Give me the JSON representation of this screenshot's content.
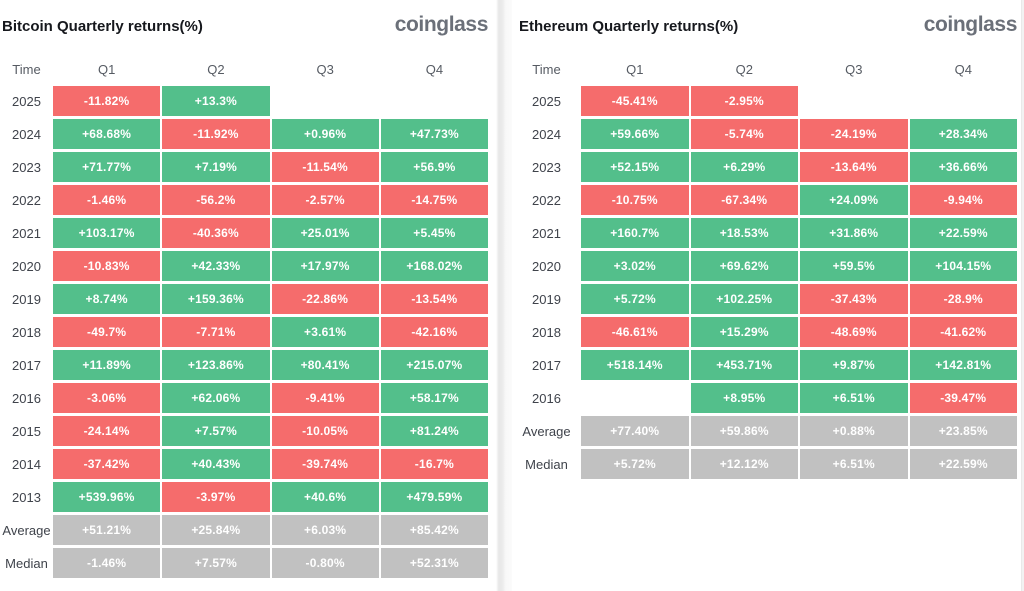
{
  "colors": {
    "green": "#53bf8b",
    "red": "#f56c6c",
    "gray": "#c1c1c1"
  },
  "panels": [
    {
      "title": "Bitcoin Quarterly returns(%)",
      "logo": "coinglass",
      "columns": [
        "Time",
        "Q1",
        "Q2",
        "Q3",
        "Q4"
      ],
      "rows": [
        {
          "label": "2025",
          "cells": [
            {
              "v": "-11.82%",
              "c": "r"
            },
            {
              "v": "+13.3%",
              "c": "g"
            },
            null,
            null
          ]
        },
        {
          "label": "2024",
          "cells": [
            {
              "v": "+68.68%",
              "c": "g"
            },
            {
              "v": "-11.92%",
              "c": "r"
            },
            {
              "v": "+0.96%",
              "c": "g"
            },
            {
              "v": "+47.73%",
              "c": "g"
            }
          ]
        },
        {
          "label": "2023",
          "cells": [
            {
              "v": "+71.77%",
              "c": "g"
            },
            {
              "v": "+7.19%",
              "c": "g"
            },
            {
              "v": "-11.54%",
              "c": "r"
            },
            {
              "v": "+56.9%",
              "c": "g"
            }
          ]
        },
        {
          "label": "2022",
          "cells": [
            {
              "v": "-1.46%",
              "c": "r"
            },
            {
              "v": "-56.2%",
              "c": "r"
            },
            {
              "v": "-2.57%",
              "c": "r"
            },
            {
              "v": "-14.75%",
              "c": "r"
            }
          ]
        },
        {
          "label": "2021",
          "cells": [
            {
              "v": "+103.17%",
              "c": "g"
            },
            {
              "v": "-40.36%",
              "c": "r"
            },
            {
              "v": "+25.01%",
              "c": "g"
            },
            {
              "v": "+5.45%",
              "c": "g"
            }
          ]
        },
        {
          "label": "2020",
          "cells": [
            {
              "v": "-10.83%",
              "c": "r"
            },
            {
              "v": "+42.33%",
              "c": "g"
            },
            {
              "v": "+17.97%",
              "c": "g"
            },
            {
              "v": "+168.02%",
              "c": "g"
            }
          ]
        },
        {
          "label": "2019",
          "cells": [
            {
              "v": "+8.74%",
              "c": "g"
            },
            {
              "v": "+159.36%",
              "c": "g"
            },
            {
              "v": "-22.86%",
              "c": "r"
            },
            {
              "v": "-13.54%",
              "c": "r"
            }
          ]
        },
        {
          "label": "2018",
          "cells": [
            {
              "v": "-49.7%",
              "c": "r"
            },
            {
              "v": "-7.71%",
              "c": "r"
            },
            {
              "v": "+3.61%",
              "c": "g"
            },
            {
              "v": "-42.16%",
              "c": "r"
            }
          ]
        },
        {
          "label": "2017",
          "cells": [
            {
              "v": "+11.89%",
              "c": "g"
            },
            {
              "v": "+123.86%",
              "c": "g"
            },
            {
              "v": "+80.41%",
              "c": "g"
            },
            {
              "v": "+215.07%",
              "c": "g"
            }
          ]
        },
        {
          "label": "2016",
          "cells": [
            {
              "v": "-3.06%",
              "c": "r"
            },
            {
              "v": "+62.06%",
              "c": "g"
            },
            {
              "v": "-9.41%",
              "c": "r"
            },
            {
              "v": "+58.17%",
              "c": "g"
            }
          ]
        },
        {
          "label": "2015",
          "cells": [
            {
              "v": "-24.14%",
              "c": "r"
            },
            {
              "v": "+7.57%",
              "c": "g"
            },
            {
              "v": "-10.05%",
              "c": "r"
            },
            {
              "v": "+81.24%",
              "c": "g"
            }
          ]
        },
        {
          "label": "2014",
          "cells": [
            {
              "v": "-37.42%",
              "c": "r"
            },
            {
              "v": "+40.43%",
              "c": "g"
            },
            {
              "v": "-39.74%",
              "c": "r"
            },
            {
              "v": "-16.7%",
              "c": "r"
            }
          ]
        },
        {
          "label": "2013",
          "cells": [
            {
              "v": "+539.96%",
              "c": "g"
            },
            {
              "v": "-3.97%",
              "c": "r"
            },
            {
              "v": "+40.6%",
              "c": "g"
            },
            {
              "v": "+479.59%",
              "c": "g"
            }
          ]
        },
        {
          "label": "Average",
          "cells": [
            {
              "v": "+51.21%",
              "c": "x"
            },
            {
              "v": "+25.84%",
              "c": "x"
            },
            {
              "v": "+6.03%",
              "c": "x"
            },
            {
              "v": "+85.42%",
              "c": "x"
            }
          ]
        },
        {
          "label": "Median",
          "cells": [
            {
              "v": "-1.46%",
              "c": "x"
            },
            {
              "v": "+7.57%",
              "c": "x"
            },
            {
              "v": "-0.80%",
              "c": "x"
            },
            {
              "v": "+52.31%",
              "c": "x"
            }
          ]
        }
      ]
    },
    {
      "title": "Ethereum Quarterly returns(%)",
      "logo": "coinglass",
      "columns": [
        "Time",
        "Q1",
        "Q2",
        "Q3",
        "Q4"
      ],
      "rows": [
        {
          "label": "2025",
          "cells": [
            {
              "v": "-45.41%",
              "c": "r"
            },
            {
              "v": "-2.95%",
              "c": "r"
            },
            null,
            null
          ]
        },
        {
          "label": "2024",
          "cells": [
            {
              "v": "+59.66%",
              "c": "g"
            },
            {
              "v": "-5.74%",
              "c": "r"
            },
            {
              "v": "-24.19%",
              "c": "r"
            },
            {
              "v": "+28.34%",
              "c": "g"
            }
          ]
        },
        {
          "label": "2023",
          "cells": [
            {
              "v": "+52.15%",
              "c": "g"
            },
            {
              "v": "+6.29%",
              "c": "g"
            },
            {
              "v": "-13.64%",
              "c": "r"
            },
            {
              "v": "+36.66%",
              "c": "g"
            }
          ]
        },
        {
          "label": "2022",
          "cells": [
            {
              "v": "-10.75%",
              "c": "r"
            },
            {
              "v": "-67.34%",
              "c": "r"
            },
            {
              "v": "+24.09%",
              "c": "g"
            },
            {
              "v": "-9.94%",
              "c": "r"
            }
          ]
        },
        {
          "label": "2021",
          "cells": [
            {
              "v": "+160.7%",
              "c": "g"
            },
            {
              "v": "+18.53%",
              "c": "g"
            },
            {
              "v": "+31.86%",
              "c": "g"
            },
            {
              "v": "+22.59%",
              "c": "g"
            }
          ]
        },
        {
          "label": "2020",
          "cells": [
            {
              "v": "+3.02%",
              "c": "g"
            },
            {
              "v": "+69.62%",
              "c": "g"
            },
            {
              "v": "+59.5%",
              "c": "g"
            },
            {
              "v": "+104.15%",
              "c": "g"
            }
          ]
        },
        {
          "label": "2019",
          "cells": [
            {
              "v": "+5.72%",
              "c": "g"
            },
            {
              "v": "+102.25%",
              "c": "g"
            },
            {
              "v": "-37.43%",
              "c": "r"
            },
            {
              "v": "-28.9%",
              "c": "r"
            }
          ]
        },
        {
          "label": "2018",
          "cells": [
            {
              "v": "-46.61%",
              "c": "r"
            },
            {
              "v": "+15.29%",
              "c": "g"
            },
            {
              "v": "-48.69%",
              "c": "r"
            },
            {
              "v": "-41.62%",
              "c": "r"
            }
          ]
        },
        {
          "label": "2017",
          "cells": [
            {
              "v": "+518.14%",
              "c": "g"
            },
            {
              "v": "+453.71%",
              "c": "g"
            },
            {
              "v": "+9.87%",
              "c": "g"
            },
            {
              "v": "+142.81%",
              "c": "g"
            }
          ]
        },
        {
          "label": "2016",
          "cells": [
            null,
            {
              "v": "+8.95%",
              "c": "g"
            },
            {
              "v": "+6.51%",
              "c": "g"
            },
            {
              "v": "-39.47%",
              "c": "r"
            }
          ]
        },
        {
          "label": "Average",
          "cells": [
            {
              "v": "+77.40%",
              "c": "x"
            },
            {
              "v": "+59.86%",
              "c": "x"
            },
            {
              "v": "+0.88%",
              "c": "x"
            },
            {
              "v": "+23.85%",
              "c": "x"
            }
          ]
        },
        {
          "label": "Median",
          "cells": [
            {
              "v": "+5.72%",
              "c": "x"
            },
            {
              "v": "+12.12%",
              "c": "x"
            },
            {
              "v": "+6.51%",
              "c": "x"
            },
            {
              "v": "+22.59%",
              "c": "x"
            }
          ]
        }
      ]
    }
  ],
  "chart_data": [
    {
      "type": "heatmap",
      "title": "Bitcoin Quarterly returns(%)",
      "columns": [
        "Q1",
        "Q2",
        "Q3",
        "Q4"
      ],
      "rows": [
        "2025",
        "2024",
        "2023",
        "2022",
        "2021",
        "2020",
        "2019",
        "2018",
        "2017",
        "2016",
        "2015",
        "2014",
        "2013",
        "Average",
        "Median"
      ],
      "values": [
        [
          -11.82,
          13.3,
          null,
          null
        ],
        [
          68.68,
          -11.92,
          0.96,
          47.73
        ],
        [
          71.77,
          7.19,
          -11.54,
          56.9
        ],
        [
          -1.46,
          -56.2,
          -2.57,
          -14.75
        ],
        [
          103.17,
          -40.36,
          25.01,
          5.45
        ],
        [
          -10.83,
          42.33,
          17.97,
          168.02
        ],
        [
          8.74,
          159.36,
          -22.86,
          -13.54
        ],
        [
          -49.7,
          -7.71,
          3.61,
          -42.16
        ],
        [
          11.89,
          123.86,
          80.41,
          215.07
        ],
        [
          -3.06,
          62.06,
          -9.41,
          58.17
        ],
        [
          -24.14,
          7.57,
          -10.05,
          81.24
        ],
        [
          -37.42,
          40.43,
          -39.74,
          -16.7
        ],
        [
          539.96,
          -3.97,
          40.6,
          479.59
        ],
        [
          51.21,
          25.84,
          6.03,
          85.42
        ],
        [
          -1.46,
          7.57,
          -0.8,
          52.31
        ]
      ],
      "legend": "green = positive return, red = negative return, gray = aggregate rows",
      "unit": "%"
    },
    {
      "type": "heatmap",
      "title": "Ethereum Quarterly returns(%)",
      "columns": [
        "Q1",
        "Q2",
        "Q3",
        "Q4"
      ],
      "rows": [
        "2025",
        "2024",
        "2023",
        "2022",
        "2021",
        "2020",
        "2019",
        "2018",
        "2017",
        "2016",
        "Average",
        "Median"
      ],
      "values": [
        [
          -45.41,
          -2.95,
          null,
          null
        ],
        [
          59.66,
          -5.74,
          -24.19,
          28.34
        ],
        [
          52.15,
          6.29,
          -13.64,
          36.66
        ],
        [
          -10.75,
          -67.34,
          24.09,
          -9.94
        ],
        [
          160.7,
          18.53,
          31.86,
          22.59
        ],
        [
          3.02,
          69.62,
          59.5,
          104.15
        ],
        [
          5.72,
          102.25,
          -37.43,
          -28.9
        ],
        [
          -46.61,
          15.29,
          -48.69,
          -41.62
        ],
        [
          518.14,
          453.71,
          9.87,
          142.81
        ],
        [
          null,
          8.95,
          6.51,
          -39.47
        ],
        [
          77.4,
          59.86,
          0.88,
          23.85
        ],
        [
          5.72,
          12.12,
          6.51,
          22.59
        ]
      ],
      "legend": "green = positive return, red = negative return, gray = aggregate rows",
      "unit": "%"
    }
  ]
}
